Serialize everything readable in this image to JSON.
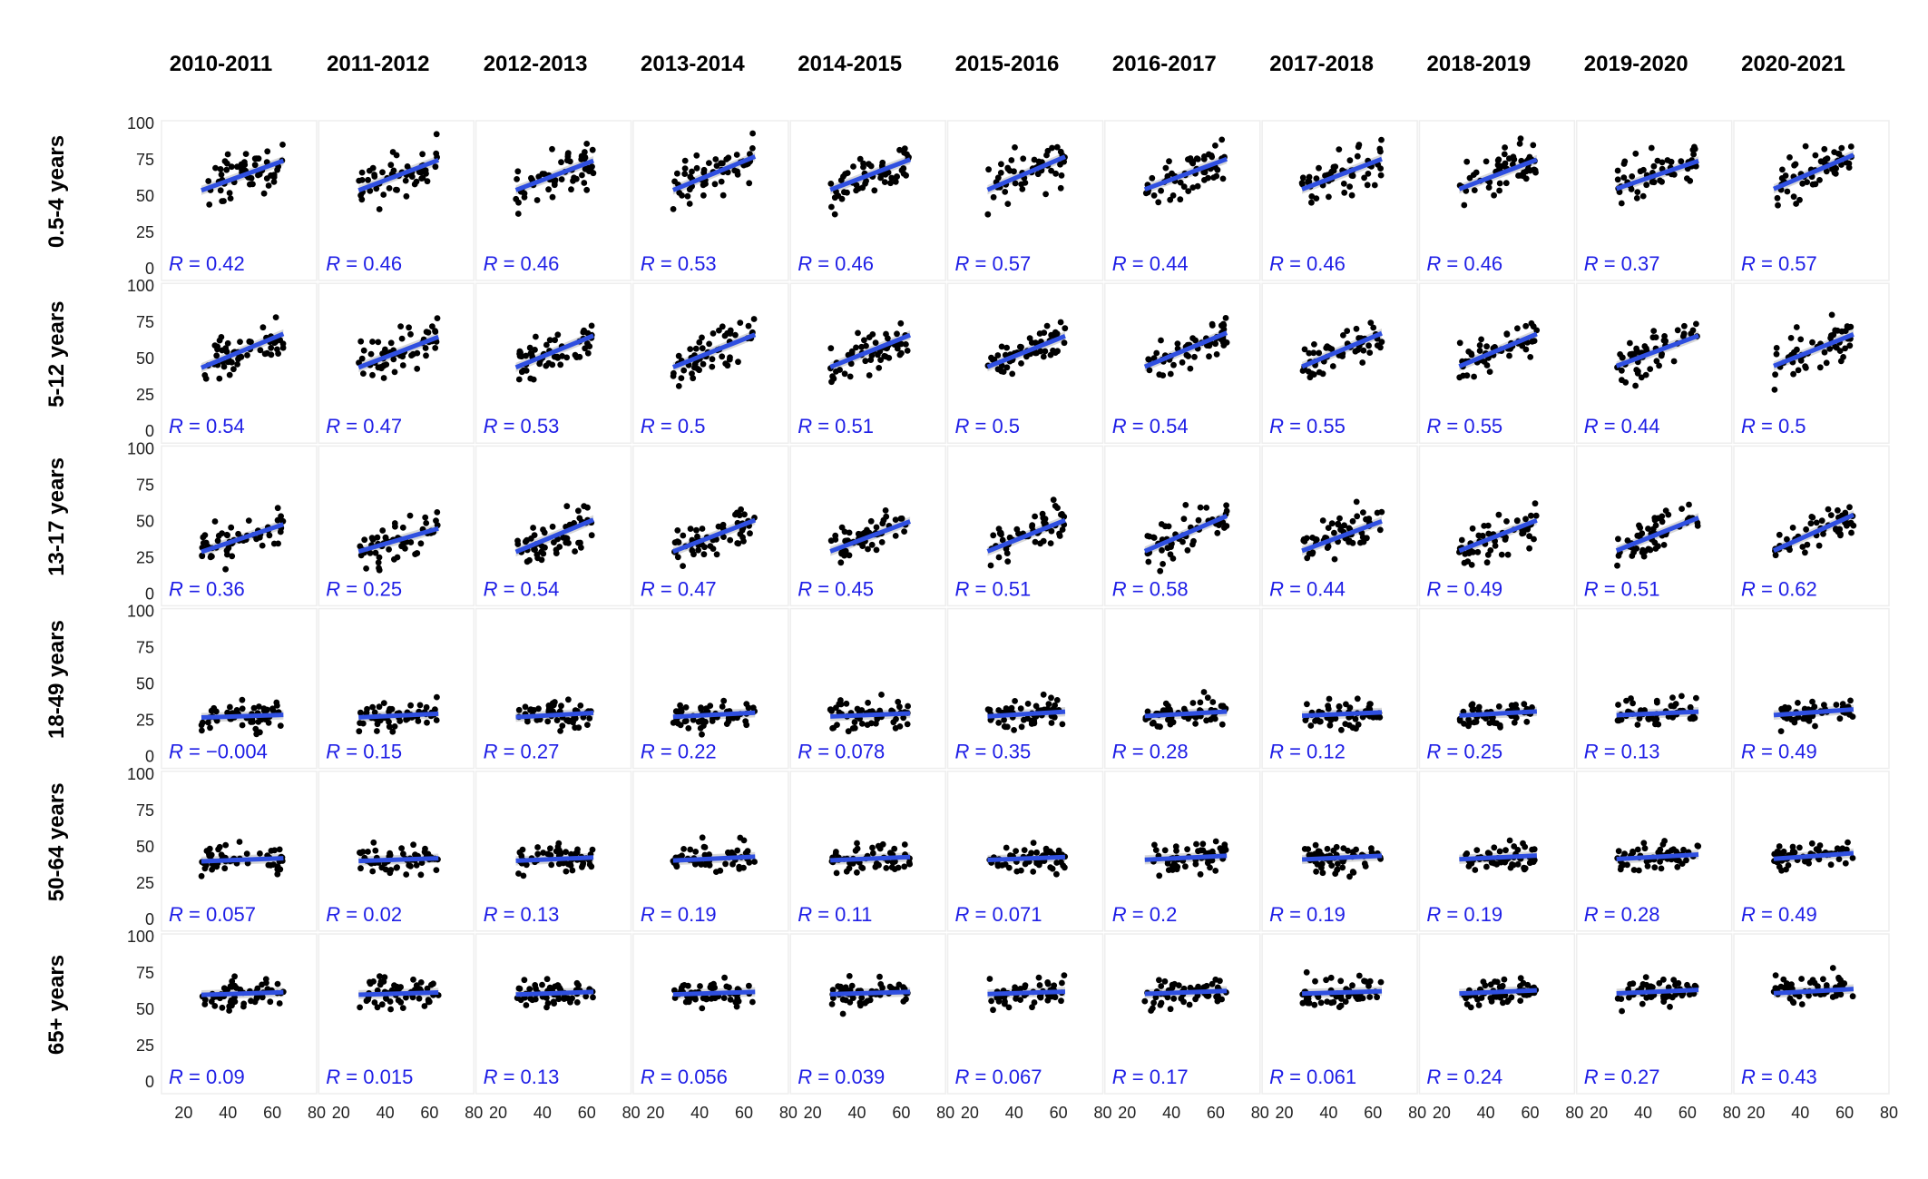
{
  "chart_data": {
    "type": "scatter",
    "facet_columns": [
      "2010-2011",
      "2011-2012",
      "2012-2013",
      "2013-2014",
      "2014-2015",
      "2015-2016",
      "2016-2017",
      "2017-2018",
      "2018-2019",
      "2019-2020",
      "2020-2021"
    ],
    "facet_rows": [
      "0.5-4 years",
      "5-12 years",
      "13-17 years",
      "18-49 years",
      "50-64 years",
      "65+ years"
    ],
    "y_ticks": [
      "0",
      "25",
      "50",
      "75",
      "100"
    ],
    "x_ticks": [
      "20",
      "40",
      "60",
      "80"
    ],
    "ylim": [
      0,
      100
    ],
    "xlim": [
      10,
      80
    ],
    "r_prefix": "R",
    "r_values": [
      [
        "0.42",
        "0.46",
        "0.46",
        "0.53",
        "0.46",
        "0.57",
        "0.44",
        "0.46",
        "0.46",
        "0.37",
        "0.57"
      ],
      [
        "0.54",
        "0.47",
        "0.53",
        "0.5",
        "0.51",
        "0.5",
        "0.54",
        "0.55",
        "0.55",
        "0.44",
        "0.5"
      ],
      [
        "0.36",
        "0.25",
        "0.54",
        "0.47",
        "0.45",
        "0.51",
        "0.58",
        "0.44",
        "0.49",
        "0.51",
        "0.62"
      ],
      [
        "−0.004",
        "0.15",
        "0.27",
        "0.22",
        "0.078",
        "0.35",
        "0.28",
        "0.12",
        "0.25",
        "0.13",
        "0.49"
      ],
      [
        "0.057",
        "0.02",
        "0.13",
        "0.19",
        "0.11",
        "0.071",
        "0.2",
        "0.19",
        "0.19",
        "0.28",
        "0.49"
      ],
      [
        "0.09",
        "0.015",
        "0.13",
        "0.056",
        "0.039",
        "0.067",
        "0.17",
        "0.061",
        "0.24",
        "0.27",
        "0.43"
      ]
    ],
    "row_fit": [
      {
        "y_at_x30": 55,
        "slope": 0.55,
        "spread": 8
      },
      {
        "y_at_x30": 45,
        "slope": 0.55,
        "spread": 7
      },
      {
        "y_at_x30": 30,
        "slope": 0.55,
        "spread": 7
      },
      {
        "y_at_x30": 27,
        "slope": 0.1,
        "spread": 5
      },
      {
        "y_at_x30": 40,
        "slope": 0.1,
        "spread": 5
      },
      {
        "y_at_x30": 60,
        "slope": 0.08,
        "spread": 5
      }
    ],
    "x_range": [
      28,
      65
    ],
    "colors": {
      "points": "#000000",
      "fit_line": "#2f4fe0",
      "confidence_band": "#b8b8b8",
      "r_label": "#1e1ee6"
    }
  }
}
